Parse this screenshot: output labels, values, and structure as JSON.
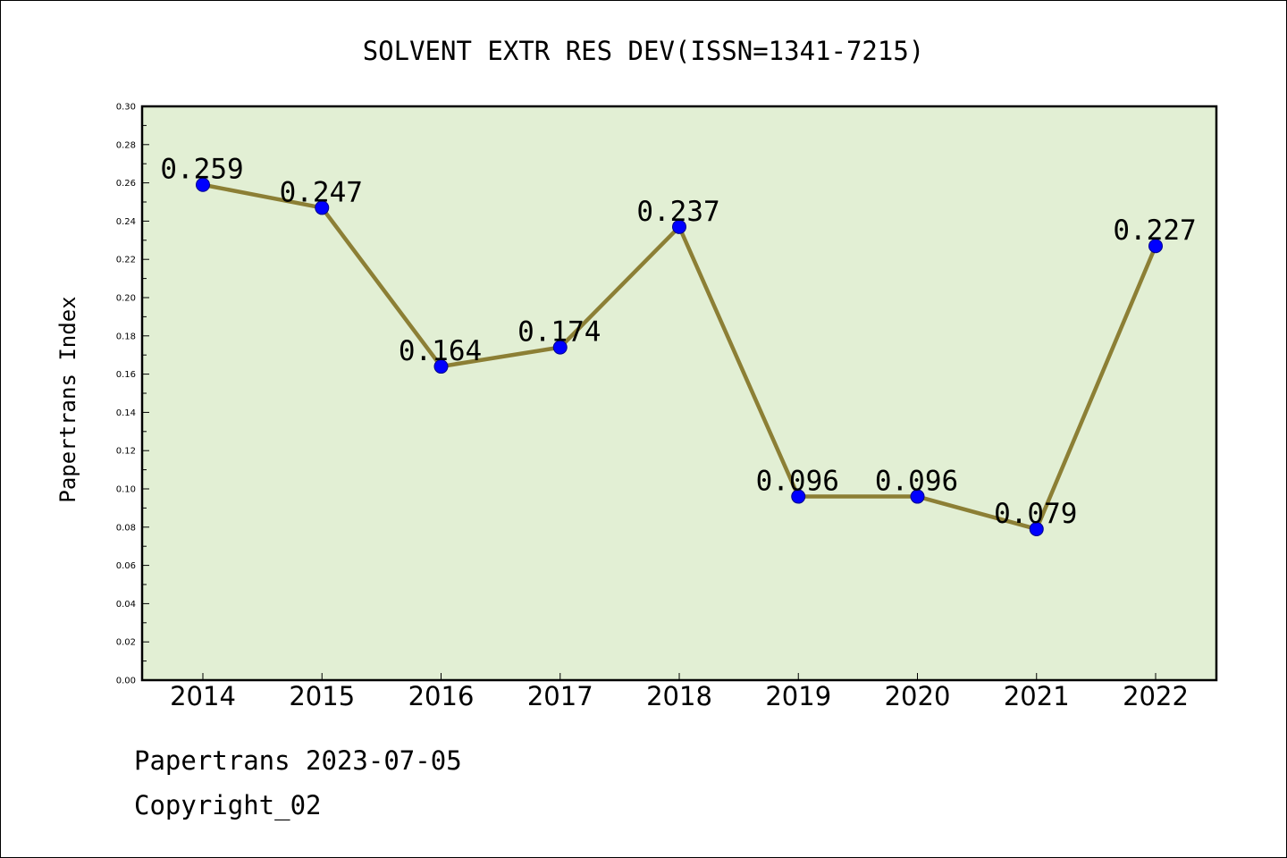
{
  "chart_data": {
    "type": "line",
    "title": "SOLVENT EXTR RES DEV(ISSN=1341-7215)",
    "ylabel": "Papertrans Index",
    "xlabel": "",
    "categories": [
      "2014",
      "2015",
      "2016",
      "2017",
      "2018",
      "2019",
      "2020",
      "2021",
      "2022"
    ],
    "values": [
      0.259,
      0.247,
      0.164,
      0.174,
      0.237,
      0.096,
      0.096,
      0.079,
      0.227
    ],
    "data_labels": [
      "0.259",
      "0.247",
      "0.164",
      "0.174",
      "0.237",
      "0.096",
      "0.096",
      "0.079",
      "0.227"
    ],
    "ylim": [
      0,
      0.3
    ],
    "yticks": [
      "0.00",
      "0.02",
      "0.04",
      "0.06",
      "0.08",
      "0.10",
      "0.12",
      "0.14",
      "0.16",
      "0.18",
      "0.20",
      "0.22",
      "0.24",
      "0.26",
      "0.28",
      "0.30"
    ],
    "grid": false,
    "legend": "none",
    "colors": {
      "plot_background": "#e2efd4",
      "line": "#8c7f35",
      "marker": "#0000ff"
    }
  },
  "footer": {
    "line1": "Papertrans 2023-07-05",
    "line2": "Copyright_02"
  }
}
